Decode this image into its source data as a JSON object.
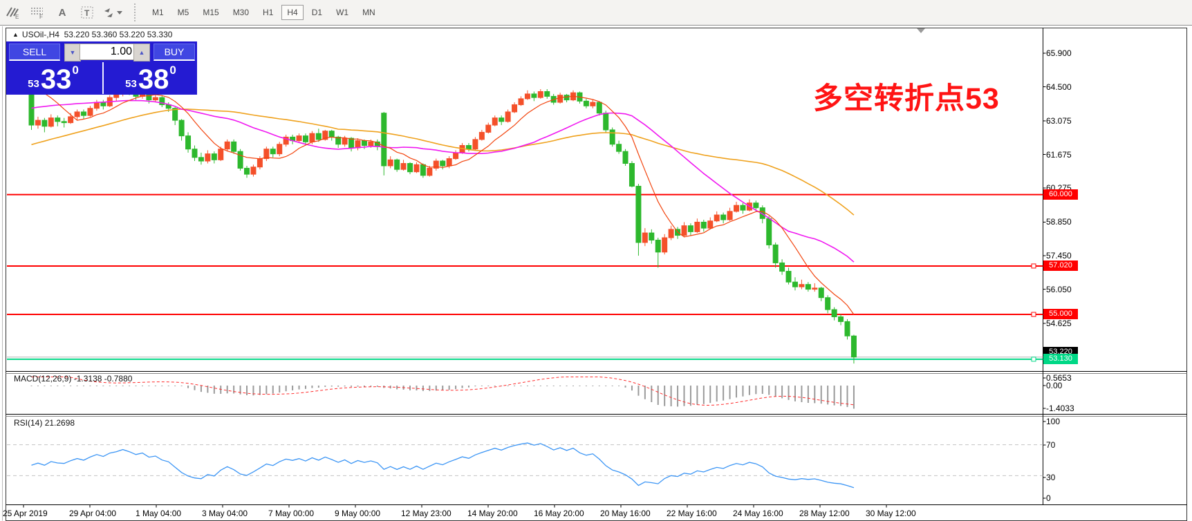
{
  "toolbar": {
    "icons": [
      {
        "name": "indicators-e-icon",
        "sub": "E"
      },
      {
        "name": "grid-f-icon",
        "sub": "F"
      },
      {
        "name": "text-a-icon",
        "sub": ""
      },
      {
        "name": "textbox-t-icon",
        "sub": ""
      },
      {
        "name": "arrows-tool-icon",
        "sub": ""
      }
    ],
    "timeframes": [
      "M1",
      "M5",
      "M15",
      "M30",
      "H1",
      "H4",
      "D1",
      "W1",
      "MN"
    ],
    "active_timeframe": "H4"
  },
  "symbol_line": {
    "name": "USOil-,H4",
    "ohlc": [
      "53.220",
      "53.360",
      "53.220",
      "53.330"
    ]
  },
  "trade_panel": {
    "sell_label": "SELL",
    "buy_label": "BUY",
    "volume": "1.00",
    "sell_price": {
      "small": "53",
      "big": "33",
      "sup": "0"
    },
    "buy_price": {
      "small": "53",
      "big": "38",
      "sup": "0"
    }
  },
  "annotation": {
    "text": "多空转折点53",
    "color": "#ff1414"
  },
  "chart_data": {
    "type": "candlestick",
    "symbol": "USOil-",
    "timeframe": "H4",
    "convention": "red=up green=down",
    "y_axis_ticks": [
      "65.900",
      "64.500",
      "63.075",
      "61.675",
      "60.275",
      "58.850",
      "57.450",
      "56.050",
      "54.625"
    ],
    "x_axis_labels": [
      "25 Apr 2019",
      "29 Apr 04:00",
      "1 May 04:00",
      "3 May 04:00",
      "7 May 00:00",
      "9 May 00:00",
      "12 May 23:00",
      "14 May 20:00",
      "16 May 20:00",
      "20 May 16:00",
      "22 May 16:00",
      "24 May 16:00",
      "28 May 12:00",
      "30 May 12:00"
    ],
    "levels": [
      {
        "price": 60.0,
        "label": "60.000",
        "kind": "red",
        "handle": false
      },
      {
        "price": 57.02,
        "label": "57.020",
        "kind": "red",
        "handle": true
      },
      {
        "price": 55.0,
        "label": "55.000",
        "kind": "red",
        "handle": true
      },
      {
        "price": 53.22,
        "label": "53.220",
        "kind": "bid",
        "handle": false
      },
      {
        "price": 53.13,
        "label": "53.130",
        "kind": "green",
        "handle": true
      }
    ],
    "colors": {
      "up": "#f4502a",
      "down": "#2db82d",
      "ma_fast": "#f2440e",
      "ma_mid": "#f018f0",
      "ma_slow": "#efa11c",
      "macd_hist": "#9a9a9a",
      "macd_signal": "#ff2b2b",
      "rsi": "#3b95f5",
      "level_red": "#ff0000",
      "support_green": "#00d886",
      "bid_gray": "#b5b5b5"
    },
    "candles": [
      [
        64.35,
        64.6,
        62.7,
        62.9
      ],
      [
        62.9,
        63.25,
        62.75,
        63.1
      ],
      [
        63.1,
        63.2,
        62.6,
        62.85
      ],
      [
        62.85,
        63.35,
        62.8,
        63.2
      ],
      [
        63.2,
        63.3,
        62.85,
        63.05
      ],
      [
        63.05,
        63.2,
        62.8,
        63.0
      ],
      [
        63.0,
        63.4,
        62.95,
        63.25
      ],
      [
        63.25,
        63.55,
        63.1,
        63.45
      ],
      [
        63.45,
        63.55,
        63.15,
        63.3
      ],
      [
        63.3,
        63.7,
        63.25,
        63.6
      ],
      [
        63.6,
        63.95,
        63.5,
        63.85
      ],
      [
        63.85,
        63.95,
        63.55,
        63.7
      ],
      [
        63.7,
        64.15,
        63.65,
        64.05
      ],
      [
        64.05,
        64.3,
        63.9,
        64.2
      ],
      [
        64.2,
        64.55,
        64.1,
        64.45
      ],
      [
        64.45,
        64.6,
        64.15,
        64.3
      ],
      [
        64.3,
        64.4,
        63.95,
        64.1
      ],
      [
        64.1,
        64.35,
        64.0,
        64.25
      ],
      [
        64.25,
        64.3,
        63.8,
        63.95
      ],
      [
        63.95,
        64.2,
        63.85,
        64.05
      ],
      [
        64.05,
        64.15,
        63.65,
        63.75
      ],
      [
        63.75,
        63.85,
        63.45,
        63.6
      ],
      [
        63.6,
        63.65,
        62.9,
        63.1
      ],
      [
        63.1,
        63.15,
        62.25,
        62.45
      ],
      [
        62.45,
        62.6,
        61.75,
        61.9
      ],
      [
        61.9,
        62.05,
        61.4,
        61.55
      ],
      [
        61.55,
        61.75,
        61.25,
        61.4
      ],
      [
        61.4,
        61.85,
        61.3,
        61.7
      ],
      [
        61.7,
        61.8,
        61.3,
        61.45
      ],
      [
        61.45,
        62.0,
        61.4,
        61.9
      ],
      [
        61.9,
        62.3,
        61.8,
        62.2
      ],
      [
        62.2,
        62.3,
        61.7,
        61.8
      ],
      [
        61.8,
        61.9,
        61.0,
        61.1
      ],
      [
        61.1,
        61.2,
        60.7,
        60.85
      ],
      [
        60.85,
        61.25,
        60.75,
        61.15
      ],
      [
        61.15,
        61.6,
        61.05,
        61.5
      ],
      [
        61.5,
        62.0,
        61.4,
        61.9
      ],
      [
        61.9,
        62.0,
        61.55,
        61.7
      ],
      [
        61.7,
        62.2,
        61.6,
        62.1
      ],
      [
        62.1,
        62.5,
        62.0,
        62.4
      ],
      [
        62.4,
        62.5,
        62.1,
        62.25
      ],
      [
        62.25,
        62.55,
        62.15,
        62.45
      ],
      [
        62.45,
        62.55,
        62.05,
        62.2
      ],
      [
        62.2,
        62.65,
        62.1,
        62.55
      ],
      [
        62.55,
        62.75,
        62.2,
        62.3
      ],
      [
        62.3,
        62.7,
        62.25,
        62.65
      ],
      [
        62.65,
        62.7,
        62.25,
        62.4
      ],
      [
        62.4,
        62.45,
        61.95,
        62.1
      ],
      [
        62.1,
        62.45,
        62.0,
        62.35
      ],
      [
        62.35,
        62.4,
        61.8,
        61.95
      ],
      [
        61.95,
        62.35,
        61.85,
        62.25
      ],
      [
        62.25,
        62.3,
        61.9,
        62.05
      ],
      [
        62.05,
        62.3,
        61.95,
        62.2
      ],
      [
        62.2,
        62.3,
        61.85,
        62.0
      ],
      [
        63.4,
        63.45,
        60.8,
        61.2
      ],
      [
        61.2,
        61.6,
        61.1,
        61.45
      ],
      [
        61.45,
        61.5,
        60.95,
        61.05
      ],
      [
        61.05,
        61.45,
        61.0,
        61.3
      ],
      [
        61.3,
        61.35,
        60.85,
        60.95
      ],
      [
        60.95,
        61.35,
        60.9,
        61.25
      ],
      [
        61.25,
        61.3,
        60.7,
        60.8
      ],
      [
        60.8,
        61.2,
        60.75,
        61.1
      ],
      [
        61.1,
        61.5,
        61.0,
        61.4
      ],
      [
        61.4,
        61.45,
        61.05,
        61.2
      ],
      [
        61.2,
        61.6,
        61.1,
        61.5
      ],
      [
        61.5,
        61.85,
        61.45,
        61.75
      ],
      [
        61.75,
        62.15,
        61.7,
        62.05
      ],
      [
        62.05,
        62.15,
        61.8,
        61.9
      ],
      [
        61.9,
        62.4,
        61.85,
        62.3
      ],
      [
        62.3,
        62.7,
        62.25,
        62.6
      ],
      [
        62.6,
        63.0,
        62.55,
        62.9
      ],
      [
        62.9,
        63.3,
        62.85,
        63.2
      ],
      [
        63.2,
        63.3,
        62.9,
        63.05
      ],
      [
        63.05,
        63.55,
        63.0,
        63.45
      ],
      [
        63.45,
        63.85,
        63.4,
        63.75
      ],
      [
        63.75,
        64.1,
        63.7,
        64.0
      ],
      [
        64.0,
        64.35,
        63.95,
        64.2
      ],
      [
        64.2,
        64.3,
        63.9,
        64.05
      ],
      [
        64.05,
        64.4,
        64.0,
        64.3
      ],
      [
        64.3,
        64.4,
        64.0,
        64.1
      ],
      [
        64.1,
        64.2,
        63.75,
        63.85
      ],
      [
        63.85,
        64.25,
        63.8,
        64.15
      ],
      [
        64.15,
        64.2,
        63.85,
        63.95
      ],
      [
        63.95,
        64.35,
        63.9,
        64.25
      ],
      [
        64.25,
        64.3,
        63.8,
        63.9
      ],
      [
        63.9,
        64.0,
        63.6,
        63.7
      ],
      [
        63.7,
        63.95,
        63.6,
        63.85
      ],
      [
        63.85,
        63.9,
        63.3,
        63.4
      ],
      [
        63.4,
        63.5,
        62.6,
        62.7
      ],
      [
        62.7,
        62.8,
        62.0,
        62.1
      ],
      [
        62.1,
        62.25,
        61.7,
        61.8
      ],
      [
        61.8,
        61.9,
        61.2,
        61.3
      ],
      [
        61.3,
        61.4,
        60.3,
        60.35
      ],
      [
        60.35,
        60.45,
        57.45,
        58.0
      ],
      [
        58.0,
        58.6,
        57.85,
        58.4
      ],
      [
        58.4,
        58.55,
        57.95,
        58.1
      ],
      [
        58.1,
        58.2,
        56.95,
        57.6
      ],
      [
        57.6,
        58.35,
        57.5,
        58.2
      ],
      [
        58.2,
        58.7,
        58.1,
        58.55
      ],
      [
        58.55,
        58.65,
        58.15,
        58.3
      ],
      [
        58.3,
        58.85,
        58.25,
        58.7
      ],
      [
        58.7,
        58.8,
        58.3,
        58.45
      ],
      [
        58.45,
        59.0,
        58.4,
        58.85
      ],
      [
        58.85,
        58.95,
        58.45,
        58.6
      ],
      [
        58.6,
        59.05,
        58.55,
        58.9
      ],
      [
        58.9,
        59.3,
        58.85,
        59.15
      ],
      [
        59.15,
        59.25,
        58.8,
        58.95
      ],
      [
        58.95,
        59.45,
        58.9,
        59.3
      ],
      [
        59.3,
        59.7,
        59.25,
        59.55
      ],
      [
        59.55,
        59.65,
        59.2,
        59.35
      ],
      [
        59.35,
        59.8,
        59.3,
        59.65
      ],
      [
        59.65,
        59.75,
        59.3,
        59.45
      ],
      [
        59.45,
        59.55,
        58.8,
        59.0
      ],
      [
        59.0,
        59.1,
        57.75,
        57.9
      ],
      [
        57.9,
        58.0,
        56.95,
        57.15
      ],
      [
        57.15,
        57.3,
        56.65,
        56.8
      ],
      [
        56.8,
        56.95,
        56.25,
        56.35
      ],
      [
        56.35,
        56.55,
        56.0,
        56.15
      ],
      [
        56.15,
        56.45,
        56.05,
        56.25
      ],
      [
        56.25,
        56.35,
        55.95,
        56.05
      ],
      [
        56.05,
        56.3,
        55.95,
        56.1
      ],
      [
        56.1,
        56.15,
        55.55,
        55.7
      ],
      [
        55.7,
        55.8,
        55.05,
        55.2
      ],
      [
        55.2,
        55.3,
        54.75,
        54.9
      ],
      [
        54.9,
        55.0,
        54.55,
        54.7
      ],
      [
        54.7,
        54.8,
        53.95,
        54.1
      ],
      [
        54.1,
        54.15,
        52.95,
        53.22
      ]
    ],
    "macd": {
      "label": "MACD(12,26,9)",
      "values": "-1.3138 -0.7880",
      "scale_labels": [
        "0.5653",
        "0.00",
        "-1.4033"
      ]
    },
    "rsi": {
      "label": "RSI(14)",
      "value": "21.2698",
      "scale_labels": [
        "100",
        "70",
        "30",
        "0"
      ],
      "dashed_levels": [
        70,
        30
      ]
    }
  }
}
